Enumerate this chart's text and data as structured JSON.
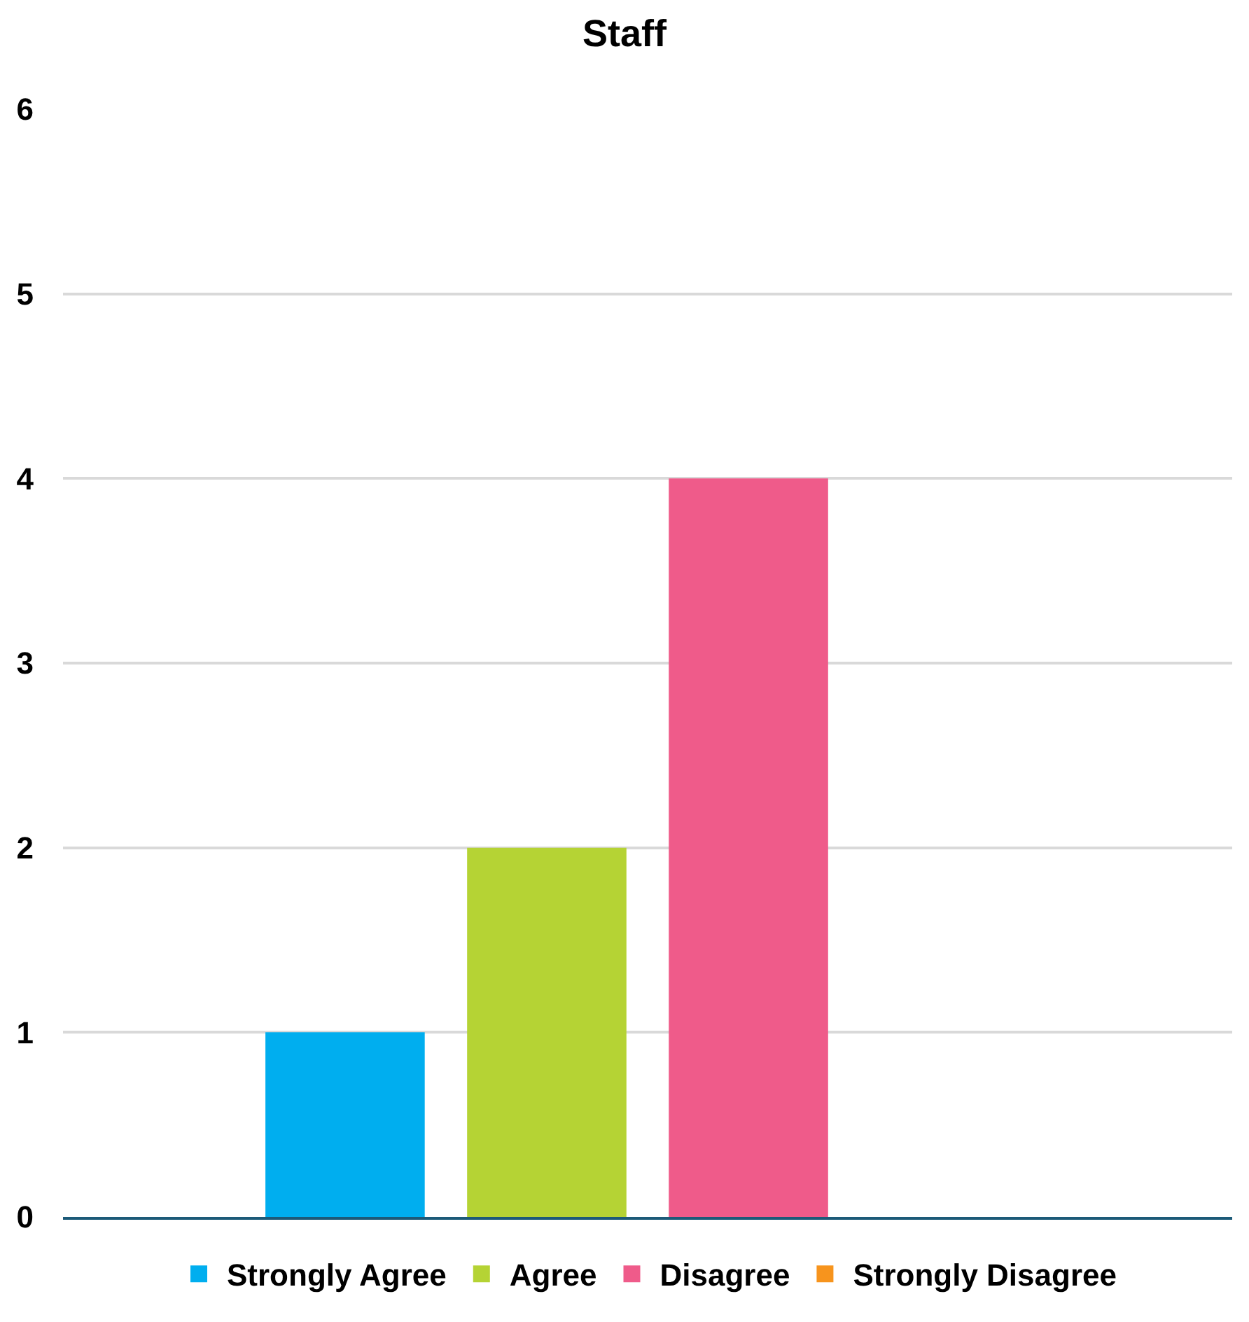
{
  "chart_data": {
    "type": "bar",
    "title": "Staff",
    "categories": [
      null
    ],
    "series": [
      {
        "name": "Strongly Agree",
        "color": "#00aeef",
        "values": [
          1
        ]
      },
      {
        "name": "Agree",
        "color": "#b5d334",
        "values": [
          2
        ]
      },
      {
        "name": "Disagree",
        "color": "#ef5b8a",
        "values": [
          4
        ]
      },
      {
        "name": "Strongly Disagree",
        "color": "#f7941d",
        "values": [
          0
        ]
      }
    ],
    "ylim": [
      0,
      6
    ],
    "yticks": [
      0,
      1,
      2,
      3,
      4,
      5,
      6
    ],
    "grid": "y",
    "legend": "bottom",
    "tick_labels": "y"
  }
}
